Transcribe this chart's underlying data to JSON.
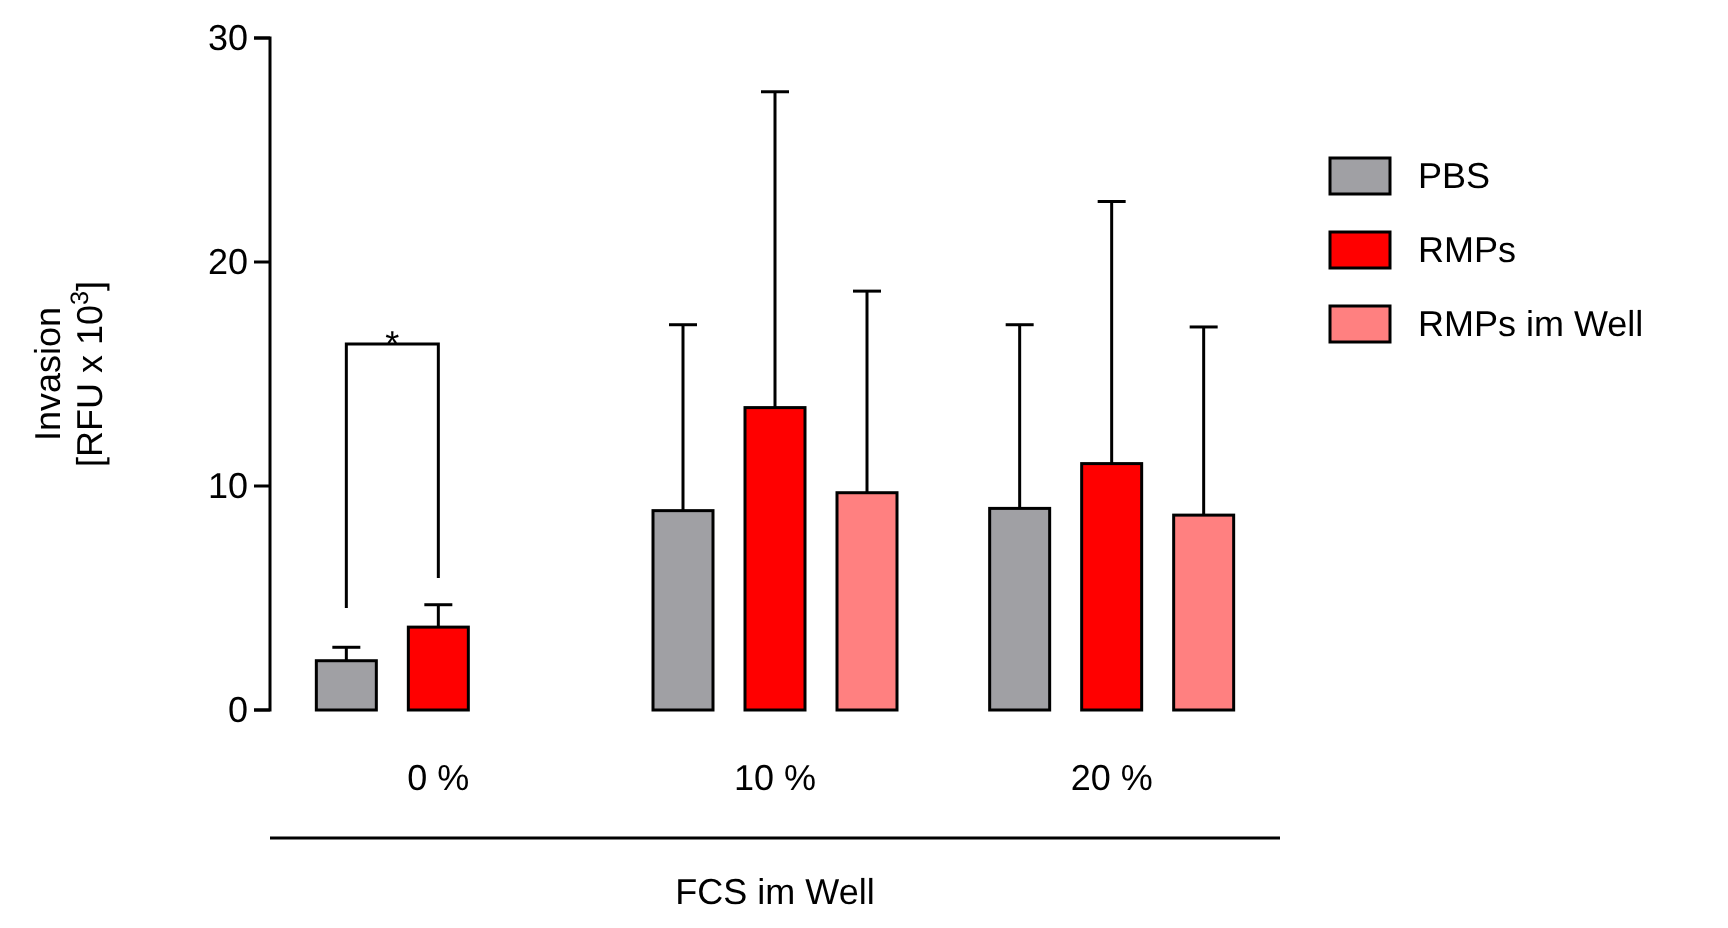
{
  "chart_data": {
    "type": "bar",
    "xlabel": "FCS im Well",
    "ylabel": "Invasion\n[RFU x 10$^{3}$]",
    "categories": [
      "0 %",
      "10 %",
      "20 %"
    ],
    "series": [
      {
        "name": "PBS",
        "color": "#a0a0a4",
        "values": [
          2.2,
          8.9,
          9.0
        ],
        "errors": [
          [
            2.2,
            2.8
          ],
          [
            8.9,
            17.2
          ],
          [
            9.0,
            17.2
          ]
        ]
      },
      {
        "name": "RMPs",
        "color": "#ff0000",
        "values": [
          3.7,
          13.5,
          11.0
        ],
        "errors": [
          [
            3.7,
            4.7
          ],
          [
            13.5,
            27.6
          ],
          [
            11.0,
            22.7
          ]
        ]
      },
      {
        "name": "RMPs im Well",
        "color": "#ff8080",
        "values": [
          null,
          9.7,
          8.7
        ],
        "errors": [
          null,
          [
            9.7,
            18.7
          ],
          [
            8.7,
            17.1
          ]
        ]
      }
    ],
    "ylim": [
      0,
      30
    ],
    "yticks": [
      0,
      10,
      20,
      30
    ],
    "grid": false,
    "legend": "right",
    "annotations": [
      "*"
    ]
  }
}
